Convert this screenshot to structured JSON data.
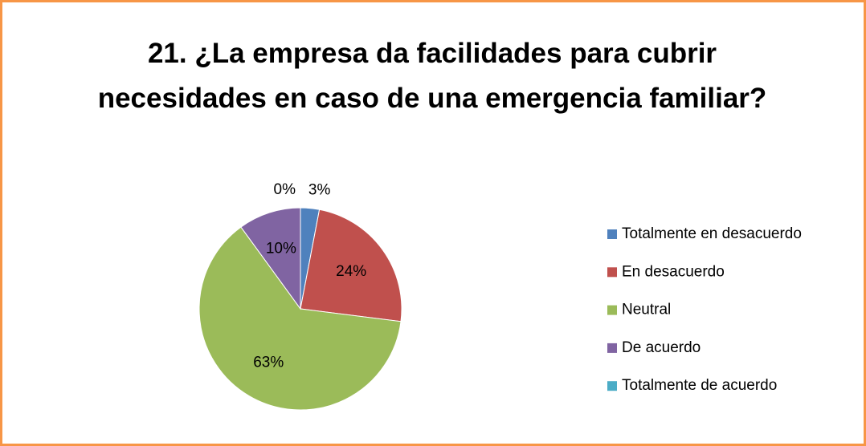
{
  "chart_data": {
    "type": "pie",
    "title": "21. ¿La empresa da facilidades para cubrir necesidades en caso de una emergencia familiar?",
    "categories": [
      "Totalmente en desacuerdo",
      "En desacuerdo",
      "Neutral",
      "De acuerdo",
      "Totalmente de acuerdo"
    ],
    "values": [
      3,
      24,
      63,
      10,
      0
    ],
    "value_labels": [
      "3%",
      "24%",
      "63%",
      "10%",
      "0%"
    ],
    "colors": [
      "#4f81bd",
      "#c0504d",
      "#9bbb59",
      "#8064a2",
      "#4bacc6"
    ],
    "legend": "right"
  }
}
